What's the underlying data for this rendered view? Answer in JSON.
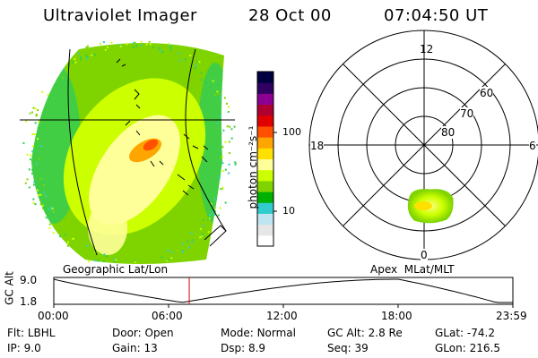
{
  "header": {
    "instrument": "Ultraviolet Imager",
    "date": "28 Oct 00",
    "time": "07:04:50 UT"
  },
  "colorbar": {
    "unit_label": "photon cm⁻²s⁻¹",
    "ticks": [
      "100",
      "10"
    ],
    "colors": [
      "#ffffff",
      "#e6e6e6",
      "#bfe6f0",
      "#33cccc",
      "#00b000",
      "#7fd400",
      "#ccff00",
      "#ffff99",
      "#ffe000",
      "#ffa500",
      "#ff5000",
      "#e00000",
      "#b00030",
      "#8b0090",
      "#300060",
      "#000040"
    ]
  },
  "left_panel": {
    "label": "Geographic Lat/Lon"
  },
  "right_panel": {
    "label": "Apex  MLat/MLT",
    "mlt_labels": {
      "top": "12",
      "left": "18",
      "right": "6",
      "bottom": "0"
    },
    "lat_labels": [
      "60",
      "70",
      "80"
    ]
  },
  "altitude_plot": {
    "ylabel": "GC Alt",
    "y_ticks": [
      "9.0",
      "1.8"
    ],
    "x_ticks": [
      "00:00",
      "06:00",
      "12:00",
      "18:00",
      "23:59"
    ],
    "current_time_hours": 7.08
  },
  "info": {
    "row1": [
      {
        "key": "Flt:",
        "value": "LBHL"
      },
      {
        "key": "Door:",
        "value": "Open"
      },
      {
        "key": "Mode:",
        "value": "Normal"
      },
      {
        "key": "GC Alt:",
        "value": "2.8 Re"
      },
      {
        "key": "GLat:",
        "value": "-74.2"
      }
    ],
    "row2": [
      {
        "key": "IP:",
        "value": "9.0"
      },
      {
        "key": "Gain:",
        "value": "13"
      },
      {
        "key": "Dsp:",
        "value": "8.9"
      },
      {
        "key": "Seq:",
        "value": "39"
      },
      {
        "key": "GLon:",
        "value": "216.5"
      }
    ]
  }
}
